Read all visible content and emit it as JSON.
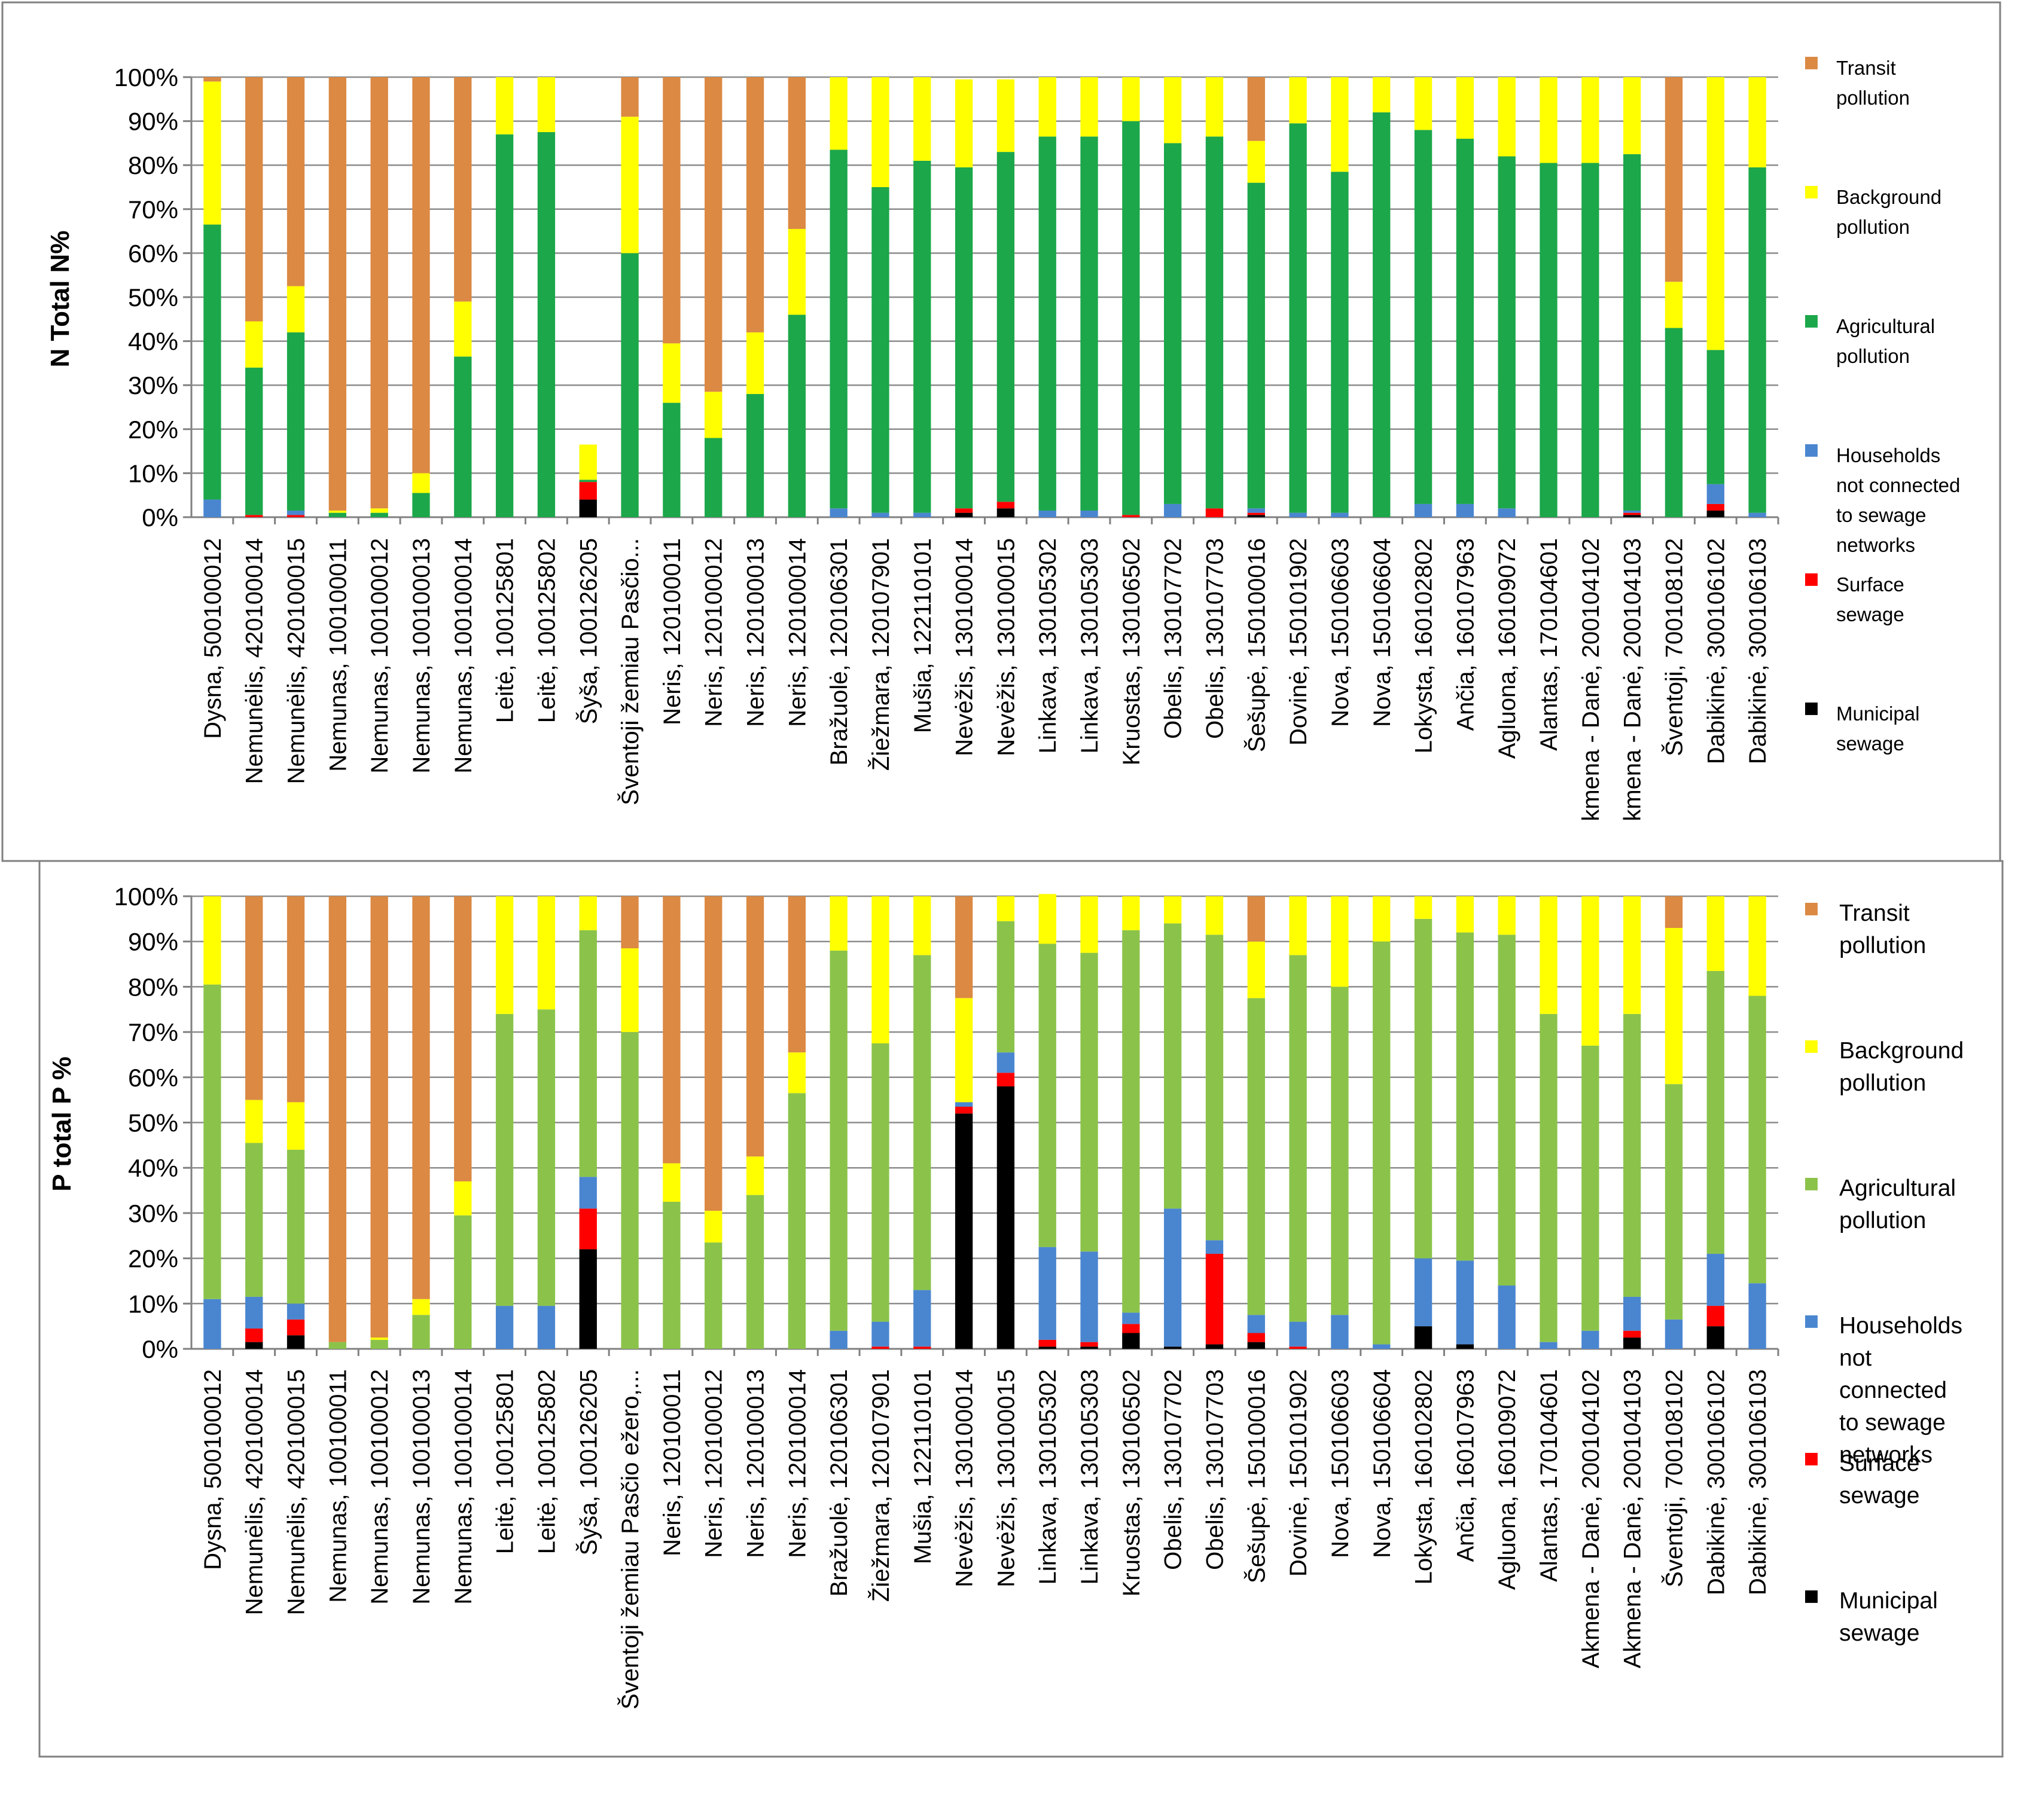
{
  "colors": {
    "transit": "#DB8943",
    "background": "#FFFF00",
    "agricultural_n": "#1CA74A",
    "agricultural_p": "#8BC34A",
    "households": "#4A86D0",
    "surface": "#FF0000",
    "municipal": "#000000"
  },
  "chart_data": [
    {
      "type": "bar",
      "stacked": true,
      "title": "",
      "ylabel": "N Total N%",
      "xlabel": "",
      "ylim": [
        0,
        100
      ],
      "yticks": [
        "0%",
        "10%",
        "20%",
        "30%",
        "40%",
        "50%",
        "60%",
        "70%",
        "80%",
        "90%",
        "100%"
      ],
      "categories": [
        "Dysna, 500100012",
        "Nemunėlis, 420100014",
        "Nemunėlis, 420100015",
        "Nemunas, 100100011",
        "Nemunas, 100100012",
        "Nemunas, 100100013",
        "Nemunas, 100100014",
        "Leitė, 100125801",
        "Leitė, 100125802",
        "Šyša, 100126205",
        "Šventoji žemiau Pasčio...",
        "Neris, 120100011",
        "Neris, 120100012",
        "Neris, 120100013",
        "Neris, 120100014",
        "Bražuolė, 120106301",
        "Žiežmara, 120107901",
        "Mušia, 122110101",
        "Nevėžis, 130100014",
        "Nevėžis, 130100015",
        "Linkava, 130105302",
        "Linkava, 130105303",
        "Kruostas, 130106502",
        "Obelis, 130107702",
        "Obelis, 130107703",
        "Šešupė, 150100016",
        "Dovinė, 150101902",
        "Nova, 150106603",
        "Nova, 150106604",
        "Lokysta, 160102802",
        "Ančia, 160107963",
        "Agluona, 160109072",
        "Alantas, 170104601",
        "kmena - Danė, 200104102",
        "kmena - Danė, 200104103",
        "Šventoji, 700108102",
        "Dabikinė, 300106102",
        "Dabikinė, 300106103"
      ],
      "legend_position": "right",
      "series": [
        {
          "name": "Municipal sewage",
          "color_key": "municipal",
          "values": [
            0,
            0,
            0,
            0,
            0,
            0,
            0,
            0,
            0,
            4,
            0,
            0,
            0,
            0,
            0,
            0,
            0,
            0,
            1,
            2,
            0,
            0,
            0,
            0,
            0,
            0.5,
            0,
            0,
            0,
            0,
            0,
            0,
            0,
            0,
            0.5,
            0,
            1.5,
            0
          ]
        },
        {
          "name": "Surface sewage",
          "color_key": "surface",
          "values": [
            0,
            0.5,
            0.5,
            0,
            0,
            0,
            0,
            0,
            0,
            4,
            0,
            0,
            0,
            0,
            0,
            0,
            0,
            0,
            1,
            1.5,
            0,
            0,
            0.5,
            0,
            2,
            0.5,
            0,
            0,
            0,
            0,
            0,
            0,
            0,
            0,
            0.5,
            0,
            1.5,
            0
          ]
        },
        {
          "name": "Households not connected to sewage networks",
          "color_key": "households",
          "values": [
            4,
            0,
            1,
            0,
            0,
            0,
            0,
            0,
            0,
            0,
            0,
            0,
            0,
            0,
            0,
            2,
            1,
            1,
            0,
            0,
            1.5,
            1.5,
            0,
            3,
            0,
            1,
            1,
            1,
            0,
            3,
            3,
            2,
            0,
            0,
            0.5,
            0,
            4.5,
            1
          ]
        },
        {
          "name": "Agricultural pollution",
          "color_key": "agricultural_n",
          "values": [
            62.5,
            33.5,
            40.5,
            1,
            1,
            5.5,
            36.5,
            87,
            87.5,
            0.5,
            60,
            26,
            18,
            28,
            46,
            81.5,
            74,
            80,
            77.5,
            79.5,
            85,
            85,
            89.5,
            82,
            84.5,
            74,
            88.5,
            77.5,
            92,
            85,
            83,
            80,
            80.5,
            80.5,
            81,
            43,
            30.5,
            78.5
          ]
        },
        {
          "name": "Background pollution",
          "color_key": "background",
          "values": [
            32.5,
            10.5,
            10.5,
            0.5,
            1,
            4.5,
            12.5,
            13,
            12.5,
            8,
            31,
            13.5,
            10.5,
            14,
            19.5,
            16.5,
            25,
            19,
            20,
            16.5,
            13.5,
            13.5,
            10,
            15,
            13.5,
            9.5,
            10.5,
            21.5,
            8,
            12,
            14,
            18,
            19.5,
            19.5,
            17.5,
            10.5,
            62,
            20.5
          ]
        },
        {
          "name": "Transit pollution",
          "color_key": "transit",
          "values": [
            1,
            55.5,
            47.5,
            98.5,
            98,
            90,
            51,
            0,
            0,
            0,
            9,
            60.5,
            71.5,
            58,
            34.5,
            0,
            0,
            0,
            0,
            0,
            0,
            0,
            0,
            0,
            0,
            14.5,
            0,
            0,
            0,
            0,
            0,
            0,
            0,
            0,
            0,
            46.5,
            0,
            0
          ]
        }
      ]
    },
    {
      "type": "bar",
      "stacked": true,
      "title": "",
      "ylabel": "P total P %",
      "xlabel": "",
      "ylim": [
        0,
        100
      ],
      "yticks": [
        "0%",
        "10%",
        "20%",
        "30%",
        "40%",
        "50%",
        "60%",
        "70%",
        "80%",
        "90%",
        "100%"
      ],
      "categories": [
        "Dysna, 500100012",
        "Nemunėlis, 420100014",
        "Nemunėlis, 420100015",
        "Nemunas, 100100011",
        "Nemunas, 100100012",
        "Nemunas, 100100013",
        "Nemunas, 100100014",
        "Leitė, 100125801",
        "Leitė, 100125802",
        "Šyša, 100126205",
        "Šventoji žemiau Pasčio ežero,...",
        "Neris, 120100011",
        "Neris, 120100012",
        "Neris, 120100013",
        "Neris, 120100014",
        "Bražuolė, 120106301",
        "Žiežmara, 120107901",
        "Mušia, 122110101",
        "Nevėžis, 130100014",
        "Nevėžis, 130100015",
        "Linkava, 130105302",
        "Linkava, 130105303",
        "Kruostas, 130106502",
        "Obelis, 130107702",
        "Obelis, 130107703",
        "Šešupė, 150100016",
        "Dovinė, 150101902",
        "Nova, 150106603",
        "Nova, 150106604",
        "Lokysta, 160102802",
        "Ančia, 160107963",
        "Agluona, 160109072",
        "Alantas, 170104601",
        "Akmena - Danė, 200104102",
        "Akmena - Danė, 200104103",
        "Šventoji, 700108102",
        "Dabikinė, 300106102",
        "Dabikinė, 300106103"
      ],
      "legend_position": "right",
      "series": [
        {
          "name": "Municipal sewage",
          "color_key": "municipal",
          "values": [
            0,
            1.5,
            3,
            0,
            0,
            0,
            0,
            0,
            0,
            22,
            0,
            0,
            0,
            0,
            0,
            0,
            0,
            0,
            52,
            58,
            0.5,
            0.5,
            3.5,
            0.5,
            1,
            1.5,
            0,
            0,
            0,
            5,
            1,
            0,
            0,
            0,
            2.5,
            0,
            5,
            0
          ]
        },
        {
          "name": "Surface sewage",
          "color_key": "surface",
          "values": [
            0,
            3,
            3.5,
            0,
            0,
            0,
            0,
            0,
            0,
            9,
            0,
            0,
            0,
            0,
            0,
            0,
            0.5,
            0.5,
            1.5,
            3,
            1.5,
            1,
            2,
            0,
            20,
            2,
            0.5,
            0,
            0,
            0,
            0,
            0,
            0,
            0,
            1.5,
            0,
            4.5,
            0
          ]
        },
        {
          "name": "Households not connected to sewage networks",
          "color_key": "households",
          "values": [
            11,
            7,
            3.5,
            0,
            0,
            0,
            0,
            9.5,
            9.5,
            7,
            0,
            0,
            0,
            0,
            0,
            4,
            5.5,
            12.5,
            1,
            4.5,
            20.5,
            20,
            2.5,
            30.5,
            3,
            4,
            5.5,
            7.5,
            1,
            15,
            18.5,
            14,
            1.5,
            4,
            7.5,
            6.5,
            11.5,
            14.5
          ]
        },
        {
          "name": "Agricultural pollution",
          "color_key": "agricultural_p",
          "values": [
            69.5,
            34,
            34,
            1.5,
            2,
            7.5,
            29.5,
            64.5,
            65.5,
            54.5,
            70,
            32.5,
            23.5,
            34,
            56.5,
            84,
            61.5,
            74,
            0,
            29,
            67,
            66,
            84.5,
            63,
            67.5,
            70,
            81,
            72.5,
            89,
            75,
            72.5,
            77.5,
            72.5,
            63,
            62.5,
            52,
            62.5,
            63.5
          ]
        },
        {
          "name": "Background pollution",
          "color_key": "background",
          "values": [
            19.5,
            9.5,
            10.5,
            0,
            0.5,
            3.5,
            7.5,
            26,
            25,
            7.5,
            18.5,
            8.5,
            7,
            8.5,
            9,
            12,
            32.5,
            13,
            23,
            5.5,
            11,
            12.5,
            7.5,
            6,
            8.5,
            12.5,
            13,
            20,
            10,
            5,
            8,
            8.5,
            26,
            33,
            26,
            34.5,
            16.5,
            22
          ]
        },
        {
          "name": "Transit pollution",
          "color_key": "transit",
          "values": [
            0,
            45,
            45.5,
            98.5,
            97.5,
            89,
            63,
            0,
            0,
            0,
            11.5,
            59,
            69.5,
            57.5,
            34.5,
            0,
            0,
            0,
            22.5,
            0,
            0,
            0,
            0,
            0,
            0,
            10,
            0,
            0,
            0,
            0,
            0,
            0,
            0,
            0,
            0,
            7,
            0,
            0
          ]
        }
      ]
    }
  ],
  "legend": {
    "chart1": [
      {
        "label_lines": [
          "Transit",
          "pollution"
        ],
        "color_key": "transit"
      },
      {
        "label_lines": [
          "Background",
          "pollution"
        ],
        "color_key": "background"
      },
      {
        "label_lines": [
          "Agricultural",
          "pollution"
        ],
        "color_key": "agricultural_n"
      },
      {
        "label_lines": [
          "Households",
          "not connected",
          "to sewage",
          "networks"
        ],
        "color_key": "households"
      },
      {
        "label_lines": [
          "Surface",
          "sewage"
        ],
        "color_key": "surface"
      },
      {
        "label_lines": [
          "Municipal",
          "sewage"
        ],
        "color_key": "municipal"
      }
    ],
    "chart2": [
      {
        "label_lines": [
          "Transit",
          "pollution"
        ],
        "color_key": "transit"
      },
      {
        "label_lines": [
          "Background",
          "pollution"
        ],
        "color_key": "background"
      },
      {
        "label_lines": [
          "Agricultural",
          "pollution"
        ],
        "color_key": "agricultural_p"
      },
      {
        "label_lines": [
          "Households",
          "not",
          "connected",
          "to sewage",
          "networks"
        ],
        "color_key": "households"
      },
      {
        "label_lines": [
          "Surface",
          "sewage"
        ],
        "color_key": "surface"
      },
      {
        "label_lines": [
          "Municipal",
          "sewage"
        ],
        "color_key": "municipal"
      }
    ]
  }
}
